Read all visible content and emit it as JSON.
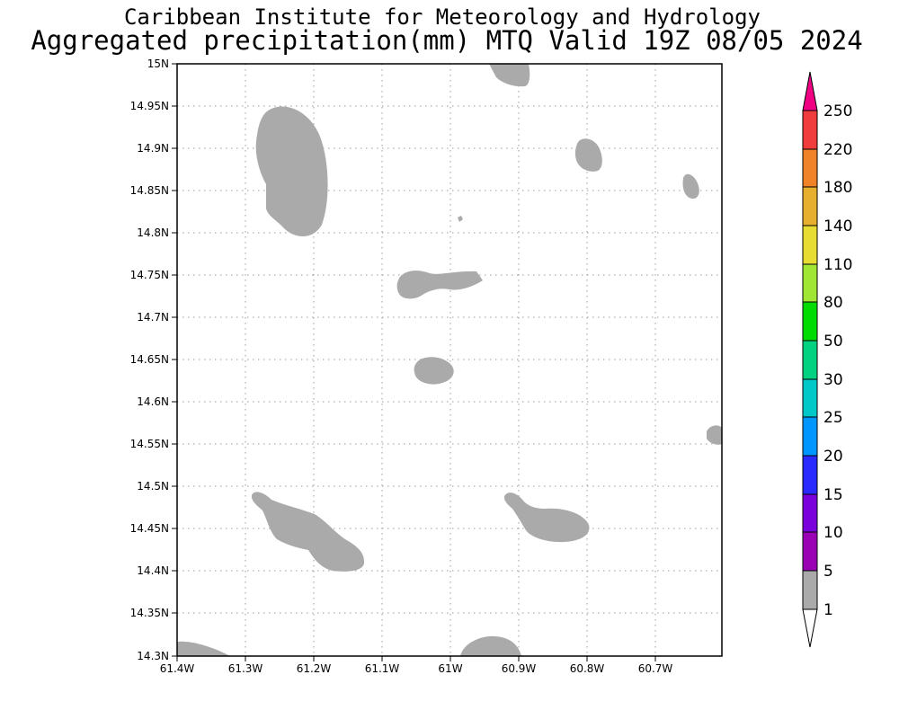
{
  "header": {
    "title": "Caribbean Institute for Meteorology and Hydrology",
    "subtitle": "Aggregated precipitation(mm) MTQ Valid 19Z 08/05 2024"
  },
  "map": {
    "lat_range": [
      14.3,
      15.0
    ],
    "lon_range": [
      -61.4,
      -60.75
    ],
    "lat_ticks": [
      "15N",
      "14.95N",
      "14.9N",
      "14.85N",
      "14.8N",
      "14.75N",
      "14.7N",
      "14.65N",
      "14.6N",
      "14.55N",
      "14.5N",
      "14.45N",
      "14.4N",
      "14.35N",
      "14.3N"
    ],
    "lon_ticks": [
      "61.4W",
      "61.3W",
      "61.2W",
      "61.1W",
      "61W",
      "60.9W",
      "60.8W",
      "60.7W"
    ],
    "precip_fill_color": "#aaaaaa",
    "grid": "dotted"
  },
  "colorbar": {
    "labels": [
      "1",
      "5",
      "10",
      "15",
      "20",
      "25",
      "30",
      "50",
      "80",
      "110",
      "140",
      "180",
      "220",
      "250"
    ],
    "colors": [
      "#aaaaaa",
      "#9a00b4",
      "#7a00dc",
      "#2a2aff",
      "#0096ff",
      "#00c8c8",
      "#00d282",
      "#00dc00",
      "#a0e632",
      "#e6dc32",
      "#e6af2d",
      "#f08228",
      "#fa3c3c",
      "#f00082"
    ],
    "under_color": "#ffffff"
  }
}
